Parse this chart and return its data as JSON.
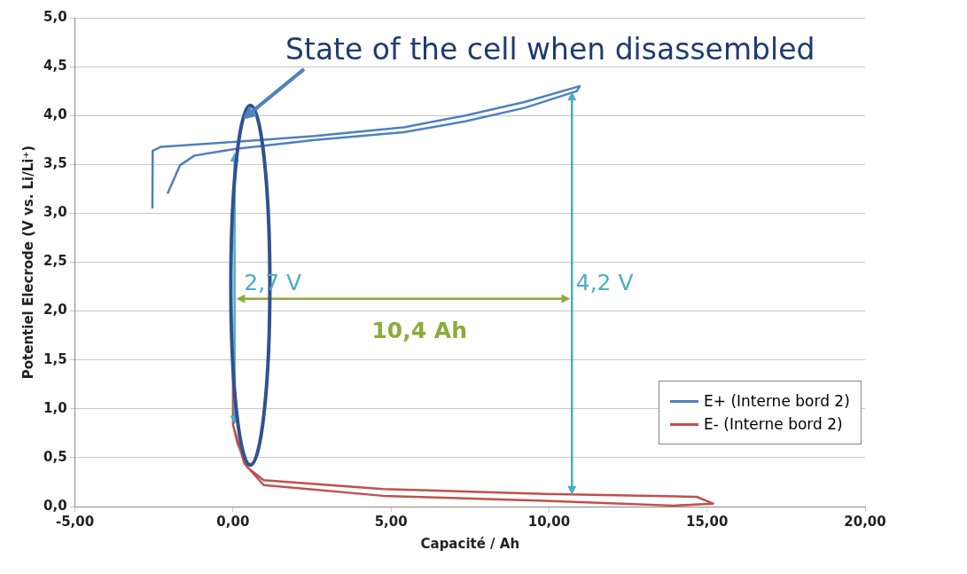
{
  "chart_data": {
    "type": "line",
    "xlabel": "Capacité / Ah",
    "ylabel": "Potentiel Elecrode (V vs. Li/Li⁺)",
    "xlim": [
      -5,
      20
    ],
    "xticks": [
      {
        "value": -5,
        "label": "-5,00"
      },
      {
        "value": 0,
        "label": "0,00"
      },
      {
        "value": 5,
        "label": "5,00"
      },
      {
        "value": 10,
        "label": "10,00"
      },
      {
        "value": 15,
        "label": "15,00"
      },
      {
        "value": 20,
        "label": "20,00"
      }
    ],
    "ylim": [
      0,
      5
    ],
    "yticks": [
      {
        "value": 0,
        "label": "0,0"
      },
      {
        "value": 0.5,
        "label": "0,5"
      },
      {
        "value": 1,
        "label": "1,0"
      },
      {
        "value": 1.5,
        "label": "1,5"
      },
      {
        "value": 2,
        "label": "2,0"
      },
      {
        "value": 2.5,
        "label": "2,5"
      },
      {
        "value": 3,
        "label": "3,0"
      },
      {
        "value": 3.5,
        "label": "3,5"
      },
      {
        "value": 4,
        "label": "4,0"
      },
      {
        "value": 4.5,
        "label": "4,5"
      },
      {
        "value": 5,
        "label": "5,0"
      }
    ],
    "grid": "y",
    "legend": "bottom right",
    "marker": "none",
    "line_style": "solid",
    "series": [
      {
        "name": "E+ (Interne bord 2)",
        "color": "#4f81bd",
        "x": [
          -2.55,
          -2.54,
          -2.27,
          0.03,
          2.6,
          5.41,
          7.35,
          9.25,
          10.97,
          10.88,
          9.25,
          7.35,
          5.41,
          2.6,
          0.1,
          -1.22,
          -1.68,
          -2.07
        ],
        "values": [
          3.05,
          3.64,
          3.68,
          3.73,
          3.79,
          3.88,
          4.0,
          4.14,
          4.3,
          4.25,
          4.08,
          3.94,
          3.83,
          3.75,
          3.66,
          3.59,
          3.49,
          3.2
        ]
      },
      {
        "name": "E- (Interne bord 2)",
        "color": "#c0504d",
        "x": [
          0,
          0,
          0.15,
          0.46,
          0.97,
          4.75,
          9.86,
          14.67,
          15.19,
          13.96,
          9.86,
          4.75,
          0.97,
          0.36,
          0.05
        ],
        "values": [
          1.46,
          0.84,
          0.64,
          0.4,
          0.27,
          0.18,
          0.13,
          0.1,
          0.03,
          0.01,
          0.06,
          0.11,
          0.22,
          0.44,
          0.78
        ]
      }
    ],
    "annotations": [
      "State of the cell when disassembled",
      "2,7 V",
      "4,2 V",
      "10,4 Ah"
    ]
  }
}
